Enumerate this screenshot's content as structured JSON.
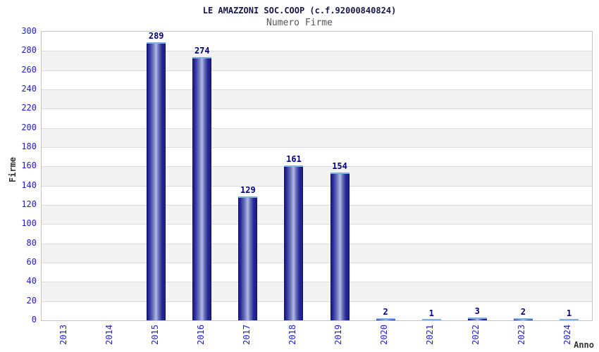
{
  "chart_data": {
    "type": "bar",
    "title": "LE AMAZZONI SOC.COOP (c.f.92000840824)",
    "subtitle": "Numero Firme",
    "xlabel": "Anno",
    "ylabel": "Firme",
    "categories": [
      "2013",
      "2014",
      "2015",
      "2016",
      "2017",
      "2018",
      "2019",
      "2020",
      "2021",
      "2022",
      "2023",
      "2024"
    ],
    "values": [
      0,
      0,
      289,
      274,
      129,
      161,
      154,
      2,
      1,
      3,
      2,
      1
    ],
    "ylim": [
      0,
      300
    ],
    "ytick_step": 20,
    "legend": "none",
    "grid": "horizontal bands every 20 units, alternating white and light gray",
    "colors": {
      "bar_dark": "#1d1d8c",
      "bar_center": "#aab2e2",
      "bar_cap": "#7fb2e5",
      "tick_label": "#2121cd",
      "value_label": "#00007e",
      "title": "#16164e",
      "subtitle": "#555555",
      "axis_title": "#333333",
      "band_gray": "#f2f2f2",
      "gridline": "#dcdcdc",
      "plot_border": "#c4c4c4",
      "background": "#ffffff"
    }
  }
}
